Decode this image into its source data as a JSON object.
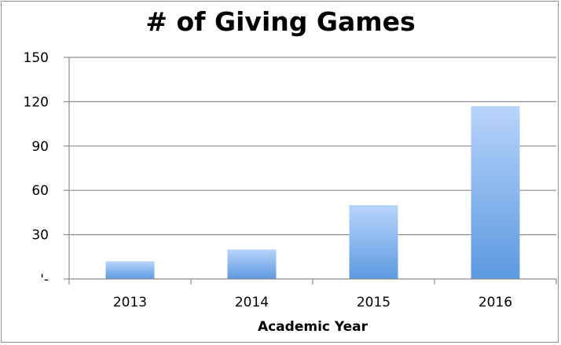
{
  "chart_data": {
    "type": "bar",
    "title": "# of Giving Games",
    "xlabel": "Academic Year",
    "ylabel": "",
    "categories": [
      "2013",
      "2014",
      "2015",
      "2016"
    ],
    "values": [
      12,
      20,
      50,
      117
    ],
    "ylim": [
      0,
      150
    ],
    "yticks": [
      0,
      30,
      60,
      90,
      120,
      150
    ],
    "ytick_labels": [
      "'-",
      "30",
      "60",
      "90",
      "120",
      "150"
    ],
    "grid": true,
    "legend": "none",
    "bar_color_top": "#b8d4fb",
    "bar_color_bottom": "#5d9ae0",
    "grid_color": "#8c8c8c"
  }
}
